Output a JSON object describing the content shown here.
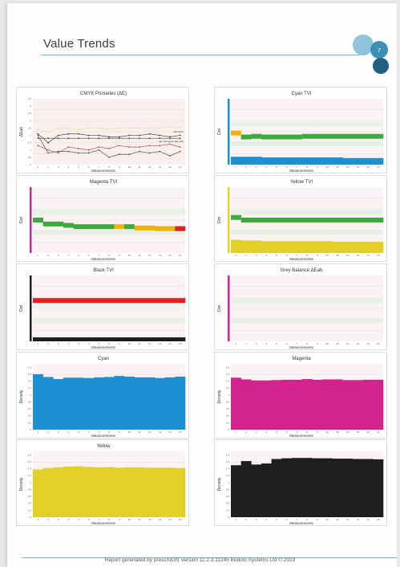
{
  "page": {
    "title": "Value Trends",
    "page_number": "7",
    "footer": "Report generated by pressSIGN Version 11.2.3.11245 Bodoni Systems Ltd © 2023"
  },
  "colors": {
    "accent": "#6bb6d2",
    "logo_dark": "#1f5f80",
    "logo_mid": "#3d8fb8",
    "logo_light": "#8fc4dc",
    "cyan": "#1e90d2",
    "magenta": "#d3238c",
    "yellow": "#e2d028",
    "black": "#1e1e1e",
    "green": "#3caa3c",
    "orange": "#f0b400",
    "red": "#e61e1e"
  },
  "chart_data": [
    {
      "id": "cmyk-primaries",
      "type": "line",
      "title": "CMYK Primaries (ΔE)",
      "xlabel": "Measurements",
      "ylabel": "ΔEab",
      "x_ticks": [
        "1",
        "2",
        "3",
        "4",
        "5",
        "6",
        "7",
        "8",
        "9",
        "10",
        "11",
        "12",
        "13",
        "14",
        "15"
      ],
      "y_ticks": [
        "0",
        "0.5",
        "1",
        "1.5",
        "2",
        "2.5",
        "3",
        "3.5",
        "4",
        "4.5"
      ],
      "ylim": [
        0,
        4.5
      ],
      "background": "#fbeeee",
      "annotations": [
        "ΔE Mean",
        "ΔE Tolerance (ΔE CIE)"
      ],
      "series": [
        {
          "color": "#e9e08a",
          "values": [
            2.4,
            2.2,
            2.5,
            2.5,
            2.4,
            2.5,
            2.5,
            2.4,
            2.5,
            2.5,
            2.5,
            2.5,
            2.5,
            2.6,
            2.5
          ]
        },
        {
          "color": "#444444",
          "values": [
            2.1,
            1.5,
            2.0,
            2.1,
            2.1,
            2.0,
            2.0,
            1.9,
            1.9,
            2.0,
            2.0,
            2.1,
            2.0,
            1.9,
            2.0
          ]
        },
        {
          "color": "#444444",
          "values": [
            1.8,
            1.8,
            1.8,
            1.8,
            1.8,
            1.8,
            1.8,
            1.8,
            1.8,
            1.8,
            1.8,
            1.8,
            1.8,
            1.8,
            1.8
          ]
        },
        {
          "color": "#b05070",
          "values": [
            1.3,
            1.0,
            0.8,
            1.2,
            1.1,
            1.0,
            1.2,
            1.1,
            1.3,
            1.2,
            1.2,
            1.3,
            1.3,
            1.4,
            1.2
          ]
        },
        {
          "color": "#555555",
          "values": [
            2.0,
            0.8,
            0.9,
            0.9,
            0.8,
            0.8,
            1.0,
            0.5,
            0.7,
            0.7,
            0.9,
            0.8,
            0.9,
            0.6,
            0.9
          ]
        }
      ]
    },
    {
      "id": "cyan-tvi",
      "type": "bar",
      "title": "Cyan TVI",
      "xlabel": "Measurements",
      "ylabel": "Dot",
      "x_ticks": [
        "1",
        "2",
        "3",
        "4",
        "5",
        "6",
        "7",
        "8",
        "9",
        "10",
        "11",
        "12",
        "13",
        "14",
        "15"
      ],
      "axis_color": "#1e90d2",
      "status": [
        "orange",
        "green",
        "green",
        "green",
        "green",
        "green",
        "green",
        "green",
        "green",
        "green",
        "green",
        "green",
        "green",
        "green",
        "green"
      ],
      "status_values": [
        0.48,
        0.42,
        0.43,
        0.42,
        0.42,
        0.42,
        0.42,
        0.43,
        0.43,
        0.43,
        0.43,
        0.43,
        0.43,
        0.43,
        0.43
      ],
      "fill_values": [
        0.12,
        0.12,
        0.12,
        0.11,
        0.11,
        0.11,
        0.11,
        0.11,
        0.11,
        0.11,
        0.11,
        0.1,
        0.1,
        0.1,
        0.1
      ]
    },
    {
      "id": "magenta-tvi",
      "type": "bar",
      "title": "Magenta TVI",
      "xlabel": "Measurements",
      "ylabel": "Dot",
      "x_ticks": [
        "1",
        "2",
        "3",
        "4",
        "5",
        "6",
        "7",
        "8",
        "9",
        "10",
        "11",
        "12",
        "13",
        "14",
        "15"
      ],
      "axis_color": "#d3238c",
      "status": [
        "green",
        "green",
        "green",
        "green",
        "green",
        "green",
        "green",
        "green",
        "orange",
        "green",
        "orange",
        "orange",
        "orange",
        "orange",
        "red"
      ],
      "status_values": [
        0.5,
        0.44,
        0.44,
        0.42,
        0.4,
        0.4,
        0.4,
        0.4,
        0.4,
        0.4,
        0.38,
        0.38,
        0.37,
        0.37,
        0.37
      ],
      "fill_values": [
        0,
        0,
        0,
        0,
        0,
        0,
        0,
        0,
        0,
        0,
        0,
        0,
        0,
        0,
        0
      ]
    },
    {
      "id": "yellow-tvi",
      "type": "bar",
      "title": "Yellow TVI",
      "xlabel": "Measurements",
      "ylabel": "Dot",
      "x_ticks": [
        "1",
        "2",
        "3",
        "4",
        "5",
        "6",
        "7",
        "8",
        "9",
        "10",
        "11",
        "12",
        "13",
        "14",
        "15"
      ],
      "axis_color": "#e2d028",
      "status": [
        "green",
        "green",
        "green",
        "green",
        "green",
        "green",
        "green",
        "green",
        "green",
        "green",
        "green",
        "green",
        "green",
        "green",
        "green"
      ],
      "status_values": [
        0.54,
        0.5,
        0.5,
        0.5,
        0.5,
        0.5,
        0.5,
        0.5,
        0.5,
        0.5,
        0.5,
        0.5,
        0.5,
        0.5,
        0.5
      ],
      "fill_values": [
        0.2,
        0.19,
        0.19,
        0.18,
        0.18,
        0.18,
        0.18,
        0.18,
        0.18,
        0.18,
        0.17,
        0.17,
        0.17,
        0.17,
        0.17
      ]
    },
    {
      "id": "black-tvi",
      "type": "bar",
      "title": "Black TVI",
      "xlabel": "Measurements",
      "ylabel": "Dot",
      "x_ticks": [
        "1",
        "2",
        "3",
        "4",
        "5",
        "6",
        "7",
        "8",
        "9",
        "10",
        "11",
        "12",
        "13",
        "14",
        "15"
      ],
      "axis_color": "#1e1e1e",
      "status": [
        "red",
        "red",
        "red",
        "red",
        "red",
        "red",
        "red",
        "red",
        "red",
        "red",
        "red",
        "red",
        "red",
        "red",
        "red"
      ],
      "status_values": [
        0.62,
        0.62,
        0.62,
        0.62,
        0.62,
        0.62,
        0.62,
        0.62,
        0.62,
        0.62,
        0.62,
        0.62,
        0.62,
        0.62,
        0.62
      ],
      "fill_values": [
        0.06,
        0.06,
        0.06,
        0.06,
        0.06,
        0.06,
        0.06,
        0.06,
        0.06,
        0.06,
        0.06,
        0.06,
        0.06,
        0.06,
        0.06
      ]
    },
    {
      "id": "grey-balance",
      "type": "bar",
      "title": "Grey Balance ΔEab",
      "xlabel": "Measurements",
      "ylabel": "Dot",
      "x_ticks": [
        "1",
        "2",
        "3",
        "4",
        "5",
        "6",
        "7",
        "8",
        "9",
        "10",
        "11",
        "12",
        "13",
        "14",
        "15"
      ],
      "axis_color": "#d3238c",
      "status": [],
      "status_values": [],
      "fill_values": []
    },
    {
      "id": "cyan-density",
      "type": "bar",
      "title": "Cyan",
      "xlabel": "Measurements",
      "ylabel": "Density",
      "x_ticks": [
        "1",
        "2",
        "3",
        "4",
        "5",
        "6",
        "7",
        "8",
        "9",
        "10",
        "11",
        "12",
        "13",
        "14",
        "15"
      ],
      "y_ticks": [
        "0",
        "0.2",
        "0.4",
        "0.6",
        "0.8",
        "1",
        "1.2",
        "1.4",
        "1.6",
        "1.8"
      ],
      "ylim": [
        0,
        1.9
      ],
      "color": "#1e90d2",
      "values": [
        1.6,
        1.52,
        1.46,
        1.5,
        1.5,
        1.49,
        1.51,
        1.52,
        1.55,
        1.53,
        1.51,
        1.51,
        1.49,
        1.51,
        1.53
      ]
    },
    {
      "id": "magenta-density",
      "type": "bar",
      "title": "Magenta",
      "xlabel": "Measurements",
      "ylabel": "Density",
      "x_ticks": [
        "1",
        "2",
        "3",
        "4",
        "5",
        "6",
        "7",
        "8",
        "9",
        "10",
        "11",
        "12",
        "13",
        "14",
        "15"
      ],
      "y_ticks": [
        "0",
        "0.2",
        "0.4",
        "0.6",
        "0.8",
        "1",
        "1.2",
        "1.4",
        "1.6",
        "1.8"
      ],
      "ylim": [
        0,
        1.9
      ],
      "color": "#d3238c",
      "values": [
        1.5,
        1.45,
        1.42,
        1.42,
        1.43,
        1.44,
        1.44,
        1.46,
        1.44,
        1.45,
        1.45,
        1.43,
        1.43,
        1.44,
        1.44
      ]
    },
    {
      "id": "yellow-density",
      "type": "bar",
      "title": "Yellow",
      "xlabel": "Measurements",
      "ylabel": "Density",
      "x_ticks": [
        "1",
        "2",
        "3",
        "4",
        "5",
        "6",
        "7",
        "8",
        "9",
        "10",
        "11",
        "12",
        "13",
        "14",
        "15"
      ],
      "y_ticks": [
        "0",
        "0.2",
        "0.4",
        "0.6",
        "0.8",
        "1",
        "1.2",
        "1.4",
        "1.6",
        "1.8"
      ],
      "ylim": [
        0,
        1.9
      ],
      "color": "#e2d028",
      "values": [
        1.38,
        1.42,
        1.44,
        1.46,
        1.47,
        1.45,
        1.44,
        1.45,
        1.43,
        1.44,
        1.44,
        1.43,
        1.43,
        1.43,
        1.42
      ]
    },
    {
      "id": "black-density",
      "type": "bar",
      "title": "",
      "xlabel": "Measurements",
      "ylabel": "Density",
      "x_ticks": [
        "1",
        "2",
        "3",
        "4",
        "5",
        "6",
        "7",
        "8",
        "9",
        "10",
        "11",
        "12",
        "13",
        "14",
        "15"
      ],
      "y_ticks": [
        "0",
        "0.2",
        "0.4",
        "0.6",
        "0.8",
        "1",
        "1.2",
        "1.4",
        "1.6",
        "1.8"
      ],
      "ylim": [
        0,
        1.9
      ],
      "color": "#1e1e1e",
      "values": [
        1.5,
        1.62,
        1.52,
        1.55,
        1.68,
        1.7,
        1.71,
        1.71,
        1.7,
        1.7,
        1.69,
        1.69,
        1.68,
        1.68,
        1.67
      ]
    }
  ]
}
